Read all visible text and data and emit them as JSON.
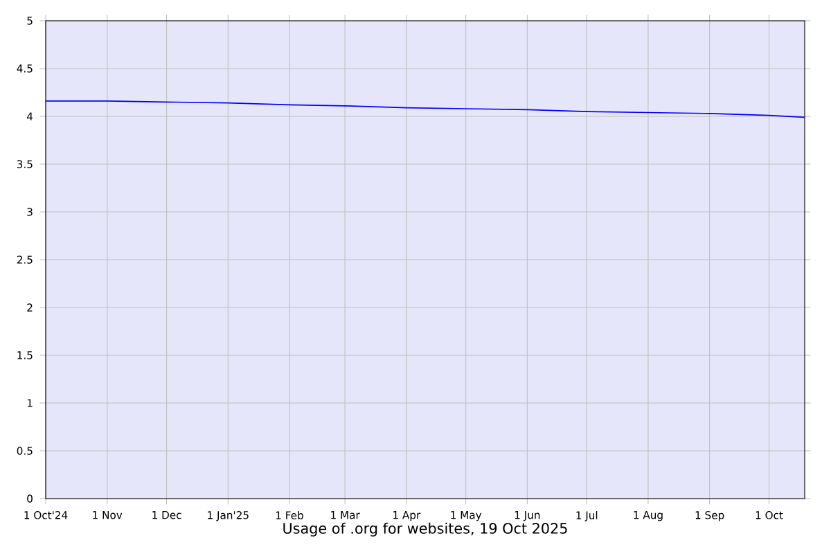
{
  "chart_data": {
    "type": "line",
    "title": "Usage of .org for websites, 19 Oct 2025",
    "x": [
      "2024-10-01",
      "2024-11-01",
      "2024-12-01",
      "2025-01-01",
      "2025-02-01",
      "2025-03-01",
      "2025-04-01",
      "2025-05-01",
      "2025-06-01",
      "2025-07-01",
      "2025-08-01",
      "2025-09-01",
      "2025-10-01",
      "2025-10-19"
    ],
    "series": [
      {
        "color": "#0000ff",
        "values": [
          4.16,
          4.16,
          4.15,
          4.14,
          4.12,
          4.11,
          4.09,
          4.08,
          4.07,
          4.05,
          4.04,
          4.03,
          4.01,
          3.99
        ]
      }
    ],
    "xlim": [
      "2024-10-01",
      "2025-10-19"
    ],
    "xticks": [
      {
        "value": "2024-10-01",
        "label": "1 Oct'24"
      },
      {
        "value": "2024-11-01",
        "label": "1 Nov"
      },
      {
        "value": "2024-12-01",
        "label": "1 Dec"
      },
      {
        "value": "2025-01-01",
        "label": "1 Jan'25"
      },
      {
        "value": "2025-02-01",
        "label": "1 Feb"
      },
      {
        "value": "2025-03-01",
        "label": "1 Mar"
      },
      {
        "value": "2025-04-01",
        "label": "1 Apr"
      },
      {
        "value": "2025-05-01",
        "label": "1 May"
      },
      {
        "value": "2025-06-01",
        "label": "1 Jun"
      },
      {
        "value": "2025-07-01",
        "label": "1 Jul"
      },
      {
        "value": "2025-08-01",
        "label": "1 Aug"
      },
      {
        "value": "2025-09-01",
        "label": "1 Sep"
      },
      {
        "value": "2025-10-01",
        "label": "1 Oct"
      }
    ],
    "ylim": [
      0,
      5
    ],
    "yticks": [
      0,
      0.5,
      1,
      1.5,
      2,
      2.5,
      3,
      3.5,
      4,
      4.5,
      5
    ],
    "grid": true,
    "marker": "none",
    "line_style": "solid"
  }
}
